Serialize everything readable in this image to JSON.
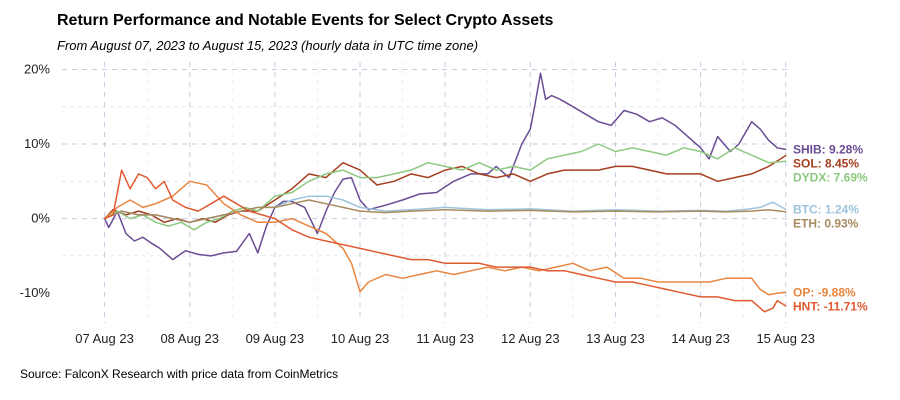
{
  "header": {
    "title": "Return Performance and Notable Events for Select Crypto Assets",
    "subtitle": "From August 07, 2023 to August 15, 2023 (hourly data in UTC time zone)"
  },
  "footer": {
    "source": "Source: FalconX Research with price data from CoinMetrics"
  },
  "chart_data": {
    "type": "line",
    "title": "Return Performance and Notable Events for Select Crypto Assets",
    "subtitle": "From August 07, 2023 to August 15, 2023 (hourly data in UTC time zone)",
    "xlabel": "",
    "ylabel": "",
    "x_unit": "days since 07 Aug 23 00:00 UTC",
    "xlim": [
      -0.5,
      8.05
    ],
    "ylim": [
      -14,
      21
    ],
    "x_ticks": [
      0,
      1,
      2,
      3,
      4,
      5,
      6,
      7,
      8
    ],
    "x_tick_labels": [
      "07 Aug 23",
      "08 Aug 23",
      "09 Aug 23",
      "10 Aug 23",
      "11 Aug 23",
      "12 Aug 23",
      "13 Aug 23",
      "14 Aug 23",
      "15 Aug 23"
    ],
    "y_ticks": [
      -10,
      0,
      10,
      20
    ],
    "y_tick_labels": [
      "-10%",
      "0%",
      "10%",
      "20%"
    ],
    "grid": true,
    "series": [
      {
        "name": "SHIB",
        "end_label": "SHIB: 9.28%",
        "color": "#6a4c93",
        "x": [
          0,
          0.05,
          0.15,
          0.25,
          0.35,
          0.45,
          0.55,
          0.65,
          0.8,
          0.95,
          1.1,
          1.25,
          1.4,
          1.55,
          1.7,
          1.8,
          1.9,
          2.0,
          2.1,
          2.2,
          2.35,
          2.5,
          2.6,
          2.7,
          2.8,
          2.9,
          3.0,
          3.1,
          3.3,
          3.5,
          3.7,
          3.9,
          4.1,
          4.3,
          4.5,
          4.6,
          4.75,
          4.9,
          5.0,
          5.05,
          5.12,
          5.18,
          5.25,
          5.35,
          5.5,
          5.65,
          5.8,
          5.95,
          6.1,
          6.25,
          6.4,
          6.55,
          6.7,
          6.85,
          7.0,
          7.1,
          7.2,
          7.35,
          7.45,
          7.6,
          7.7,
          7.8,
          7.9,
          8.0
        ],
        "y": [
          0,
          -1.2,
          1.0,
          -2.0,
          -3.0,
          -2.5,
          -3.3,
          -4.0,
          -5.5,
          -4.3,
          -4.8,
          -5.0,
          -4.6,
          -4.4,
          -2.0,
          -4.6,
          -1.0,
          1.5,
          2.3,
          2.3,
          1.5,
          -2.0,
          1.0,
          3.5,
          5.3,
          5.5,
          2.5,
          1.2,
          1.8,
          2.5,
          3.3,
          3.5,
          5.0,
          6.0,
          6.0,
          7.0,
          5.5,
          10.0,
          12.0,
          15.0,
          19.5,
          16.0,
          16.5,
          16.0,
          15.0,
          14.0,
          13.0,
          12.5,
          14.5,
          14.0,
          13.0,
          13.5,
          12.5,
          11.0,
          9.5,
          8.0,
          11.0,
          9.0,
          10.0,
          13.0,
          12.0,
          10.5,
          9.5,
          9.28
        ]
      },
      {
        "name": "SOL",
        "end_label": "SOL: 8.45%",
        "color": "#a53f20",
        "x": [
          0,
          0.1,
          0.25,
          0.4,
          0.55,
          0.7,
          0.85,
          1.0,
          1.15,
          1.3,
          1.45,
          1.6,
          1.8,
          2.0,
          2.2,
          2.4,
          2.6,
          2.8,
          3.0,
          3.2,
          3.4,
          3.6,
          3.8,
          4.0,
          4.2,
          4.4,
          4.6,
          4.8,
          5.0,
          5.2,
          5.4,
          5.6,
          5.8,
          6.0,
          6.2,
          6.4,
          6.6,
          6.8,
          7.0,
          7.2,
          7.4,
          7.6,
          7.8,
          8.0
        ],
        "y": [
          0,
          1.2,
          0.5,
          1.0,
          0.5,
          -0.5,
          0,
          -0.5,
          0,
          -0.5,
          0.5,
          1.0,
          1.0,
          2.5,
          4.0,
          6.0,
          5.5,
          7.5,
          6.5,
          4.5,
          5.0,
          6.0,
          5.5,
          6.5,
          7.0,
          6.0,
          5.5,
          6.0,
          5.0,
          6.0,
          6.5,
          6.5,
          6.5,
          7.0,
          7.0,
          6.5,
          6.0,
          6.0,
          6.0,
          5.0,
          5.5,
          6.0,
          7.0,
          8.45
        ]
      },
      {
        "name": "DYDX",
        "end_label": "DYDX: 7.69%",
        "color": "#8cc97f",
        "x": [
          0,
          0.15,
          0.3,
          0.45,
          0.6,
          0.75,
          0.9,
          1.05,
          1.2,
          1.35,
          1.5,
          1.65,
          1.8,
          2.0,
          2.2,
          2.4,
          2.6,
          2.8,
          3.0,
          3.2,
          3.4,
          3.6,
          3.8,
          4.0,
          4.2,
          4.4,
          4.6,
          4.8,
          5.0,
          5.2,
          5.4,
          5.6,
          5.8,
          6.0,
          6.2,
          6.4,
          6.6,
          6.8,
          7.0,
          7.2,
          7.4,
          7.6,
          7.8,
          8.0
        ],
        "y": [
          0,
          1.0,
          0,
          0.5,
          -0.5,
          -1.0,
          -0.5,
          -1.5,
          -0.5,
          0,
          1.0,
          1.5,
          1.0,
          3.0,
          3.5,
          5.0,
          6.0,
          6.5,
          5.5,
          5.5,
          6.0,
          6.5,
          7.5,
          7.0,
          6.5,
          7.5,
          6.5,
          7.0,
          6.5,
          8.0,
          8.5,
          9.0,
          10.0,
          9.0,
          9.5,
          9.0,
          8.5,
          9.5,
          9.0,
          8.0,
          9.5,
          8.5,
          7.5,
          7.69
        ]
      },
      {
        "name": "BTC",
        "end_label": "BTC: 1.24%",
        "color": "#9ec3dc",
        "x": [
          0,
          0.2,
          0.4,
          0.6,
          0.8,
          1.0,
          1.2,
          1.4,
          1.6,
          1.8,
          2.0,
          2.2,
          2.4,
          2.6,
          2.8,
          3.0,
          3.3,
          3.6,
          4.0,
          4.5,
          5.0,
          5.5,
          6.0,
          6.5,
          7.0,
          7.3,
          7.5,
          7.7,
          7.85,
          8.0
        ],
        "y": [
          0,
          1.0,
          0.5,
          0.5,
          0,
          -0.5,
          0,
          0.5,
          1.0,
          1.5,
          1.5,
          2.5,
          3.0,
          3.0,
          2.5,
          1.5,
          1.0,
          1.2,
          1.5,
          1.2,
          1.3,
          1.0,
          1.2,
          1.0,
          1.1,
          1.0,
          1.2,
          1.5,
          2.2,
          1.24
        ]
      },
      {
        "name": "ETH",
        "end_label": "ETH: 0.93%",
        "color": "#a98a5f",
        "x": [
          0,
          0.2,
          0.4,
          0.6,
          0.8,
          1.0,
          1.2,
          1.4,
          1.6,
          1.8,
          2.0,
          2.2,
          2.4,
          2.6,
          2.8,
          3.0,
          3.3,
          3.6,
          4.0,
          4.5,
          5.0,
          5.5,
          6.0,
          6.5,
          7.0,
          7.3,
          7.6,
          7.8,
          8.0
        ],
        "y": [
          0,
          1.0,
          0.5,
          0.5,
          0,
          -0.5,
          0,
          0.5,
          1.0,
          1.5,
          1.5,
          2.0,
          2.5,
          2.0,
          1.5,
          1.0,
          0.8,
          1.0,
          1.2,
          1.0,
          1.1,
          0.9,
          1.0,
          0.9,
          1.0,
          0.9,
          1.0,
          1.2,
          0.93
        ]
      },
      {
        "name": "OP",
        "end_label": "OP: -9.88%",
        "color": "#e8853f",
        "x": [
          0,
          0.15,
          0.3,
          0.45,
          0.6,
          0.8,
          1.0,
          1.2,
          1.4,
          1.6,
          1.8,
          2.0,
          2.2,
          2.4,
          2.6,
          2.8,
          2.9,
          3.0,
          3.1,
          3.3,
          3.5,
          3.7,
          3.9,
          4.1,
          4.3,
          4.5,
          4.7,
          4.9,
          5.1,
          5.3,
          5.5,
          5.7,
          5.9,
          6.1,
          6.3,
          6.5,
          6.7,
          6.9,
          7.1,
          7.3,
          7.5,
          7.6,
          7.7,
          7.8,
          7.9,
          8.0
        ],
        "y": [
          0,
          1.5,
          2.5,
          1.5,
          2.0,
          3.0,
          5.0,
          4.5,
          2.0,
          0.5,
          -0.5,
          -0.5,
          0,
          -1.0,
          -2.0,
          -4.0,
          -6.0,
          -9.8,
          -8.5,
          -7.5,
          -8.0,
          -7.5,
          -7.0,
          -7.5,
          -7.0,
          -6.5,
          -7.0,
          -6.5,
          -7.0,
          -6.5,
          -6.0,
          -7.0,
          -6.5,
          -8.0,
          -8.0,
          -8.5,
          -8.5,
          -8.5,
          -8.5,
          -8.0,
          -8.0,
          -8.0,
          -9.5,
          -10.2,
          -10.0,
          -9.88
        ]
      },
      {
        "name": "HNT",
        "end_label": "HNT: -11.71%",
        "color": "#e05a30",
        "x": [
          0,
          0.1,
          0.2,
          0.3,
          0.4,
          0.5,
          0.6,
          0.7,
          0.8,
          0.95,
          1.1,
          1.25,
          1.4,
          1.55,
          1.7,
          1.85,
          2.0,
          2.2,
          2.4,
          2.6,
          2.8,
          3.0,
          3.2,
          3.4,
          3.6,
          3.8,
          4.0,
          4.2,
          4.4,
          4.6,
          4.8,
          5.0,
          5.2,
          5.4,
          5.6,
          5.8,
          6.0,
          6.2,
          6.4,
          6.6,
          6.8,
          7.0,
          7.2,
          7.4,
          7.6,
          7.75,
          7.85,
          7.9,
          8.0
        ],
        "y": [
          0,
          0.5,
          6.5,
          4.0,
          6.0,
          5.5,
          4.0,
          5.0,
          2.5,
          1.5,
          1.0,
          2.0,
          3.0,
          2.0,
          1.0,
          0.5,
          0,
          -1.5,
          -2.5,
          -3.0,
          -3.5,
          -4.0,
          -4.5,
          -5.0,
          -5.5,
          -5.5,
          -6.0,
          -6.0,
          -6.0,
          -6.5,
          -6.5,
          -6.5,
          -7.0,
          -7.0,
          -7.5,
          -8.0,
          -8.5,
          -8.5,
          -9.0,
          -9.5,
          -10.0,
          -10.5,
          -10.5,
          -11.0,
          -11.0,
          -12.5,
          -12.0,
          -11.0,
          -11.71
        ]
      }
    ]
  }
}
